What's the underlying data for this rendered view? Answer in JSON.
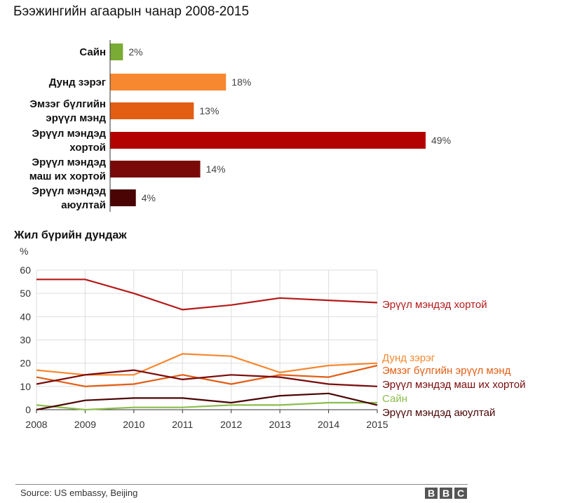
{
  "title": "Бээжингийн агаарын чанар 2008-2015",
  "source": "Source: US embassy, Beijing",
  "brand": [
    "B",
    "B",
    "C"
  ],
  "chart_data": [
    {
      "type": "bar",
      "orientation": "horizontal",
      "categories": [
        [
          "Сайн"
        ],
        [
          "Дунд зэрэг"
        ],
        [
          "Эмзэг бүлгийн",
          "эрүүл мэнд"
        ],
        [
          "Эрүүл мэндэд",
          "хортой"
        ],
        [
          "Эрүүл мэндэд",
          "маш их хортой"
        ],
        [
          "Эрүүл мэндэд",
          "аюултай"
        ]
      ],
      "values": [
        2,
        18,
        13,
        49,
        14,
        4
      ],
      "value_labels": [
        "2%",
        "18%",
        "13%",
        "49%",
        "14%",
        "4%"
      ],
      "colors": [
        "#7aab34",
        "#f7882f",
        "#e35d12",
        "#b30000",
        "#7a0a0a",
        "#4a0404"
      ]
    },
    {
      "type": "line",
      "title": "Жил бүрийн дундаж",
      "ylabel": "%",
      "x": [
        2008,
        2009,
        2010,
        2011,
        2012,
        2013,
        2014,
        2015
      ],
      "ylim": [
        0,
        60
      ],
      "yticks": [
        0,
        10,
        20,
        30,
        40,
        50,
        60
      ],
      "grid": true,
      "series": [
        {
          "name": "Эрүүл мэндэд хортой",
          "color": "#b51a1a",
          "values": [
            56,
            56,
            50,
            43,
            45,
            48,
            47,
            46
          ]
        },
        {
          "name": "Дунд зэрэг",
          "color": "#f7882f",
          "values": [
            17,
            15,
            15,
            24,
            23,
            16,
            19,
            20
          ]
        },
        {
          "name": "Эмзэг бүлгийн эрүүл мэнд",
          "color": "#e35d12",
          "values": [
            14,
            10,
            11,
            15,
            11,
            15,
            14,
            19
          ]
        },
        {
          "name": "Эрүүл мэндэд маш их хортой",
          "color": "#7a0a0a",
          "values": [
            11,
            15,
            17,
            13,
            15,
            14,
            11,
            10
          ]
        },
        {
          "name": "Сайн",
          "color": "#8bbd4c",
          "values": [
            2,
            0,
            1,
            1,
            2,
            2,
            3,
            3
          ]
        },
        {
          "name": "Эрүүл мэндэд аюултай",
          "color": "#4a0404",
          "values": [
            0,
            4,
            5,
            5,
            3,
            6,
            7,
            2
          ]
        }
      ]
    }
  ]
}
